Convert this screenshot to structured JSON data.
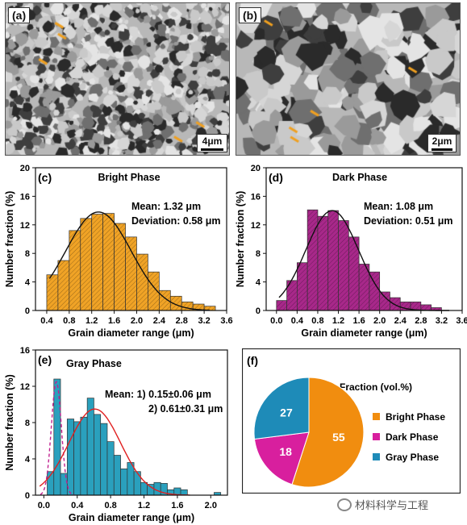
{
  "panels": {
    "a": {
      "label": "(a)",
      "scale": "4μm"
    },
    "b": {
      "label": "(b)",
      "scale": "2μm"
    }
  },
  "chart_data": [
    {
      "id": "c",
      "type": "bar",
      "panel_label": "(c)",
      "title": "Bright Phase",
      "xlabel": "Grain diameter range (μm)",
      "ylabel": "Number fraction (%)",
      "xlim": [
        0.2,
        3.6
      ],
      "ylim": [
        0,
        20
      ],
      "xticks": [
        "0.4",
        "0.8",
        "1.2",
        "1.6",
        "2.0",
        "2.4",
        "2.8",
        "3.2",
        "3.6"
      ],
      "yticks": [
        "0",
        "4",
        "8",
        "12",
        "16",
        "20"
      ],
      "bin_width": 0.2,
      "x": [
        0.5,
        0.7,
        0.9,
        1.1,
        1.3,
        1.5,
        1.7,
        1.9,
        2.1,
        2.3,
        2.5,
        2.7,
        2.9,
        3.1,
        3.3
      ],
      "values": [
        5,
        7,
        11.2,
        12.9,
        13.5,
        13.6,
        12.2,
        10.3,
        7.9,
        5.4,
        2.8,
        2.0,
        1.2,
        0.9,
        0.6
      ],
      "fit": {
        "mean": 1.32,
        "sd": 0.58,
        "peak": 13.8
      },
      "annotations": [
        "Mean: 1.32 μm",
        "Deviation: 0.58 μm"
      ],
      "color": "#f0a326"
    },
    {
      "id": "d",
      "type": "bar",
      "panel_label": "(d)",
      "title": "Dark Phase",
      "xlabel": "Grain diameter range (μm)",
      "ylabel": "Number fraction (%)",
      "xlim": [
        -0.2,
        3.6
      ],
      "ylim": [
        0,
        20
      ],
      "xticks": [
        "0.0",
        "0.4",
        "0.8",
        "1.2",
        "1.6",
        "2.0",
        "2.4",
        "2.8",
        "3.2",
        "3.6"
      ],
      "yticks": [
        "0",
        "4",
        "8",
        "12",
        "16",
        "20"
      ],
      "bin_width": 0.2,
      "x": [
        0.1,
        0.3,
        0.5,
        0.7,
        0.9,
        1.1,
        1.3,
        1.5,
        1.7,
        1.9,
        2.1,
        2.3,
        2.5,
        2.7,
        2.9,
        3.1
      ],
      "values": [
        1.4,
        4.2,
        6.7,
        14.1,
        13.2,
        14.0,
        12.6,
        10.3,
        6.5,
        5.4,
        2.6,
        1.8,
        1.2,
        1.2,
        0.8,
        0.4
      ],
      "fit": {
        "mean": 1.08,
        "sd": 0.51,
        "peak": 14.0
      },
      "annotations": [
        "Mean: 1.08 μm",
        "Deviation: 0.51 μm"
      ],
      "color": "#a8288a"
    },
    {
      "id": "e",
      "type": "bar",
      "panel_label": "(e)",
      "title": "Gray Phase",
      "xlabel": "Grain diameter range (μm)",
      "ylabel": "Number fraction (%)",
      "xlim": [
        -0.1,
        2.2
      ],
      "ylim": [
        0,
        16
      ],
      "xticks": [
        "0.0",
        "0.4",
        "0.8",
        "1.2",
        "1.6",
        "2.0"
      ],
      "yticks": [
        "0",
        "4",
        "8",
        "12",
        "16"
      ],
      "bin_width": 0.08,
      "x": [
        0.08,
        0.16,
        0.24,
        0.32,
        0.4,
        0.48,
        0.56,
        0.64,
        0.72,
        0.8,
        0.88,
        0.96,
        1.04,
        1.12,
        1.2,
        1.28,
        1.36,
        1.44,
        1.52,
        1.6,
        1.68,
        1.76,
        2.08
      ],
      "values": [
        2.6,
        12.8,
        2.4,
        8.4,
        8.1,
        8.6,
        10.7,
        8.9,
        7.9,
        5.9,
        4.4,
        2.9,
        3.6,
        2.6,
        1.4,
        1.2,
        1.4,
        1.3,
        0.6,
        0.8,
        0.6,
        0.0,
        0.3
      ],
      "fits": [
        {
          "mean": 0.15,
          "sd": 0.06,
          "peak": 12.5,
          "style": "dashed-magenta"
        },
        {
          "mean": 0.61,
          "sd": 0.31,
          "peak": 9.5,
          "style": "solid-red"
        }
      ],
      "annotations": [
        "Mean:  1) 0.15±0.06 μm",
        "2) 0.61±0.31 μm"
      ],
      "color": "#2aa0bd"
    },
    {
      "id": "f",
      "type": "pie",
      "panel_label": "(f)",
      "title": "Fraction (vol.%)",
      "categories": [
        "Bright Phase",
        "Dark Phase",
        "Gray Phase"
      ],
      "values": [
        55,
        18,
        27
      ],
      "colors": [
        "#f18d0f",
        "#d81f9e",
        "#1e8bb8"
      ]
    }
  ],
  "watermark": "材料科学与工程"
}
